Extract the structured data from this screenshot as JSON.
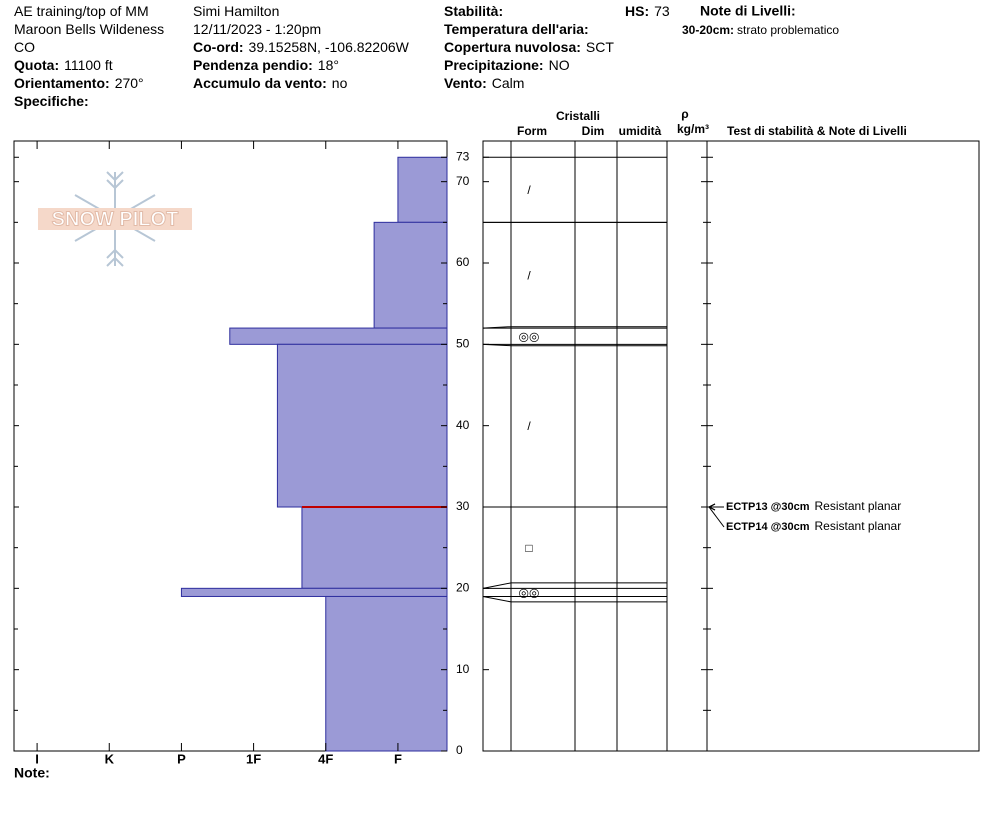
{
  "header": {
    "columns": [
      [
        {
          "value": "AE training/top of MM"
        },
        {
          "value": "Maroon Bells Wildeness"
        },
        {
          "value": "CO"
        },
        {
          "label": "Quota:",
          "value": "11100 ft"
        },
        {
          "label": "Orientamento:",
          "value": "270°"
        },
        {
          "label": "Specifiche:"
        }
      ],
      [
        {
          "value": "Simi Hamilton"
        },
        {
          "value": "12/11/2023 - 1:20pm"
        },
        {
          "label": "Co-ord:",
          "value": "39.15258N, -106.82206W"
        },
        {
          "label": "Pendenza pendio:",
          "value": "18°"
        },
        {
          "label": "Accumulo da vento:",
          "value": "no"
        }
      ],
      [
        {
          "label": "Stabilità:"
        },
        {
          "label": "Temperatura dell'aria:"
        },
        {
          "label": "Copertura nuvolosa:",
          "value": "SCT"
        },
        {
          "label": "Precipitazione:",
          "value": "NO"
        },
        {
          "label": "Vento:",
          "value": "Calm"
        }
      ]
    ],
    "hs": {
      "label": "HS:",
      "value": "73"
    },
    "layer_notes": {
      "title": "Note di Livelli:",
      "items": [
        {
          "label": "30-20cm:",
          "value": "strato problematico"
        }
      ]
    }
  },
  "table_headers": {
    "cristalli": "Cristalli",
    "rho": "ρ",
    "form": "Form",
    "dim": "Dim",
    "umidita": "umidità",
    "density_unit": "kg/m³",
    "tests": "Test di stabilità & Note di Livelli"
  },
  "logo": "SNOW PILOT",
  "note": "Note:",
  "chart_data": {
    "type": "snow-profile",
    "xlim": [
      6.32,
      0.32
    ],
    "xticks": [
      {
        "value": 6,
        "label": "I"
      },
      {
        "value": 5,
        "label": "K"
      },
      {
        "value": 4,
        "label": "P"
      },
      {
        "value": 3,
        "label": "1F"
      },
      {
        "value": 2,
        "label": "4F"
      },
      {
        "value": 1,
        "label": "F"
      }
    ],
    "ylim": [
      0,
      75
    ],
    "yticks": [
      0,
      10,
      20,
      30,
      40,
      50,
      60,
      70,
      73
    ],
    "yminorticks": [
      5,
      15,
      25,
      35,
      45,
      55,
      65
    ],
    "color": "#9b9ad6",
    "edge_color": "#2e2e9e",
    "critical_color": "#c00000",
    "critical_depth": 30,
    "layers": [
      {
        "top": 73,
        "bottom": 65,
        "hardness": 1,
        "form": "/"
      },
      {
        "top": 65,
        "bottom": 52,
        "hardness": 1.33,
        "form": "/"
      },
      {
        "top": 52,
        "bottom": 50,
        "hardness": 3.33,
        "form": "◎◎"
      },
      {
        "top": 50,
        "bottom": 30,
        "hardness": 2.67,
        "form": "/"
      },
      {
        "top": 30,
        "bottom": 20,
        "hardness": 2.33,
        "form": "□"
      },
      {
        "top": 20,
        "bottom": 19,
        "hardness": 4,
        "form": "◎◎"
      },
      {
        "top": 19,
        "bottom": 0,
        "hardness": 2
      }
    ],
    "stability_tests": [
      {
        "depth": 30,
        "test": "ECTP13 @30cm",
        "result": "Resistant planar"
      },
      {
        "depth": 30,
        "test": "ECTP14 @30cm",
        "result": "Resistant planar"
      }
    ]
  }
}
